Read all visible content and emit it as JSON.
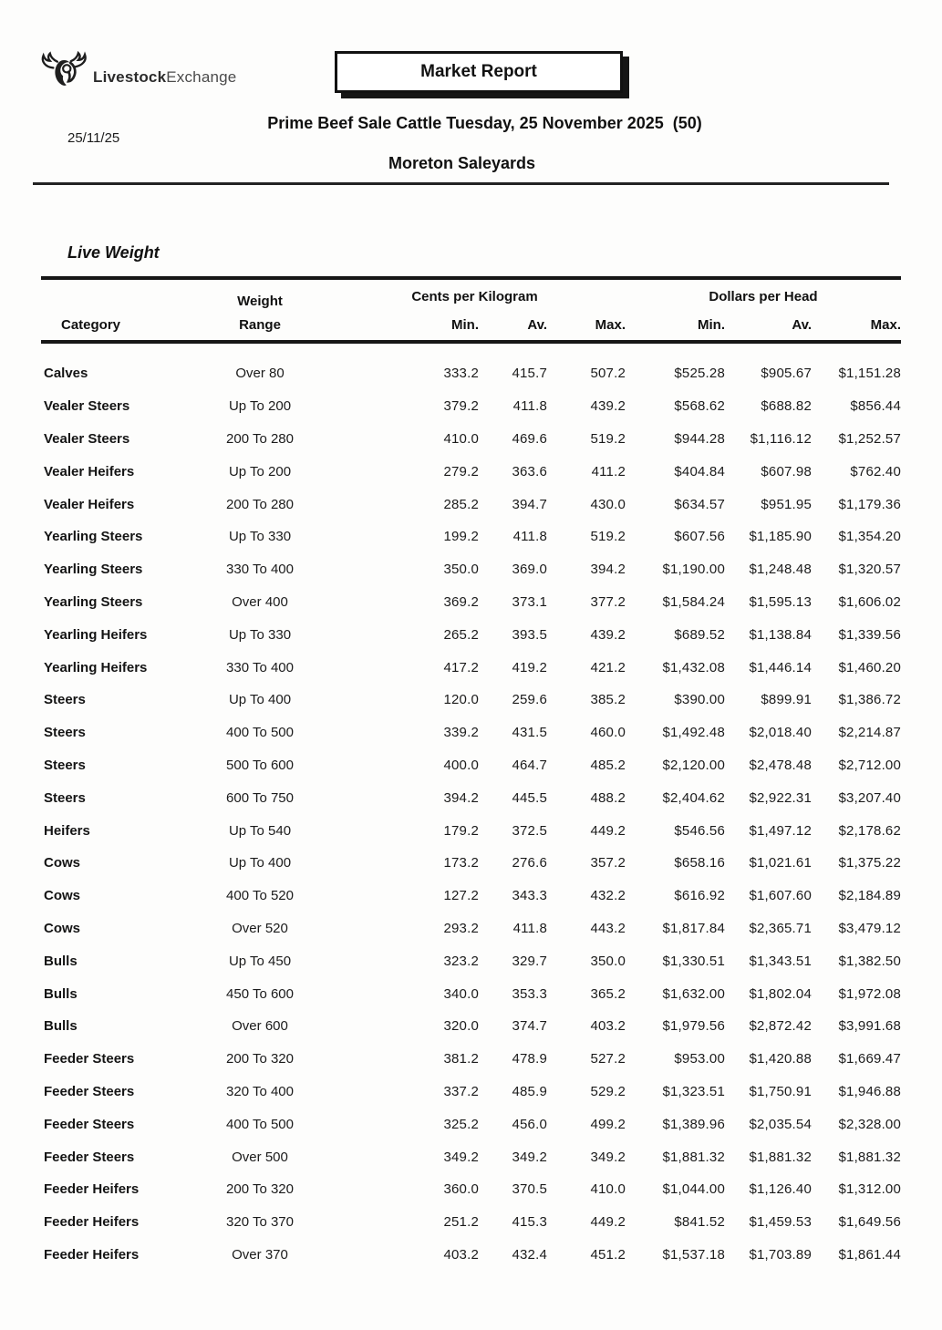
{
  "header": {
    "logo_bold": "Livestock",
    "logo_light": "Exchange",
    "badge": "Market Report",
    "date": "25/11/25",
    "title": "Prime Beef Sale Cattle Tuesday, 25 November 2025  (50)",
    "subtitle": "Moreton Saleyards"
  },
  "section": {
    "title": "Live Weight"
  },
  "table": {
    "groups": {
      "cents": "Cents per Kilogram",
      "dollars": "Dollars per Head"
    },
    "headers": {
      "category": "Category",
      "weight_line1": "Weight",
      "weight_line2": "Range",
      "min": "Min.",
      "av": "Av.",
      "max": "Max."
    },
    "rows": [
      [
        "Calves",
        "Over 80",
        "333.2",
        "415.7",
        "507.2",
        "$525.28",
        "$905.67",
        "$1,151.28"
      ],
      [
        "Vealer Steers",
        "Up To 200",
        "379.2",
        "411.8",
        "439.2",
        "$568.62",
        "$688.82",
        "$856.44"
      ],
      [
        "Vealer Steers",
        "200 To 280",
        "410.0",
        "469.6",
        "519.2",
        "$944.28",
        "$1,116.12",
        "$1,252.57"
      ],
      [
        "Vealer Heifers",
        "Up To 200",
        "279.2",
        "363.6",
        "411.2",
        "$404.84",
        "$607.98",
        "$762.40"
      ],
      [
        "Vealer Heifers",
        "200 To 280",
        "285.2",
        "394.7",
        "430.0",
        "$634.57",
        "$951.95",
        "$1,179.36"
      ],
      [
        "Yearling Steers",
        "Up To 330",
        "199.2",
        "411.8",
        "519.2",
        "$607.56",
        "$1,185.90",
        "$1,354.20"
      ],
      [
        "Yearling Steers",
        "330 To 400",
        "350.0",
        "369.0",
        "394.2",
        "$1,190.00",
        "$1,248.48",
        "$1,320.57"
      ],
      [
        "Yearling Steers",
        "Over 400",
        "369.2",
        "373.1",
        "377.2",
        "$1,584.24",
        "$1,595.13",
        "$1,606.02"
      ],
      [
        "Yearling Heifers",
        "Up To 330",
        "265.2",
        "393.5",
        "439.2",
        "$689.52",
        "$1,138.84",
        "$1,339.56"
      ],
      [
        "Yearling Heifers",
        "330 To 400",
        "417.2",
        "419.2",
        "421.2",
        "$1,432.08",
        "$1,446.14",
        "$1,460.20"
      ],
      [
        "Steers",
        "Up To 400",
        "120.0",
        "259.6",
        "385.2",
        "$390.00",
        "$899.91",
        "$1,386.72"
      ],
      [
        "Steers",
        "400 To 500",
        "339.2",
        "431.5",
        "460.0",
        "$1,492.48",
        "$2,018.40",
        "$2,214.87"
      ],
      [
        "Steers",
        "500 To 600",
        "400.0",
        "464.7",
        "485.2",
        "$2,120.00",
        "$2,478.48",
        "$2,712.00"
      ],
      [
        "Steers",
        "600 To 750",
        "394.2",
        "445.5",
        "488.2",
        "$2,404.62",
        "$2,922.31",
        "$3,207.40"
      ],
      [
        "Heifers",
        "Up To 540",
        "179.2",
        "372.5",
        "449.2",
        "$546.56",
        "$1,497.12",
        "$2,178.62"
      ],
      [
        "Cows",
        "Up To 400",
        "173.2",
        "276.6",
        "357.2",
        "$658.16",
        "$1,021.61",
        "$1,375.22"
      ],
      [
        "Cows",
        "400 To 520",
        "127.2",
        "343.3",
        "432.2",
        "$616.92",
        "$1,607.60",
        "$2,184.89"
      ],
      [
        "Cows",
        "Over 520",
        "293.2",
        "411.8",
        "443.2",
        "$1,817.84",
        "$2,365.71",
        "$3,479.12"
      ],
      [
        "Bulls",
        "Up To 450",
        "323.2",
        "329.7",
        "350.0",
        "$1,330.51",
        "$1,343.51",
        "$1,382.50"
      ],
      [
        "Bulls",
        "450 To 600",
        "340.0",
        "353.3",
        "365.2",
        "$1,632.00",
        "$1,802.04",
        "$1,972.08"
      ],
      [
        "Bulls",
        "Over 600",
        "320.0",
        "374.7",
        "403.2",
        "$1,979.56",
        "$2,872.42",
        "$3,991.68"
      ],
      [
        "Feeder Steers",
        "200 To 320",
        "381.2",
        "478.9",
        "527.2",
        "$953.00",
        "$1,420.88",
        "$1,669.47"
      ],
      [
        "Feeder Steers",
        "320 To 400",
        "337.2",
        "485.9",
        "529.2",
        "$1,323.51",
        "$1,750.91",
        "$1,946.88"
      ],
      [
        "Feeder Steers",
        "400 To 500",
        "325.2",
        "456.0",
        "499.2",
        "$1,389.96",
        "$2,035.54",
        "$2,328.00"
      ],
      [
        "Feeder Steers",
        "Over 500",
        "349.2",
        "349.2",
        "349.2",
        "$1,881.32",
        "$1,881.32",
        "$1,881.32"
      ],
      [
        "Feeder Heifers",
        "200 To 320",
        "360.0",
        "370.5",
        "410.0",
        "$1,044.00",
        "$1,126.40",
        "$1,312.00"
      ],
      [
        "Feeder Heifers",
        "320 To 370",
        "251.2",
        "415.3",
        "449.2",
        "$841.52",
        "$1,459.53",
        "$1,649.56"
      ],
      [
        "Feeder Heifers",
        "Over 370",
        "403.2",
        "432.4",
        "451.2",
        "$1,537.18",
        "$1,703.89",
        "$1,861.44"
      ]
    ]
  }
}
